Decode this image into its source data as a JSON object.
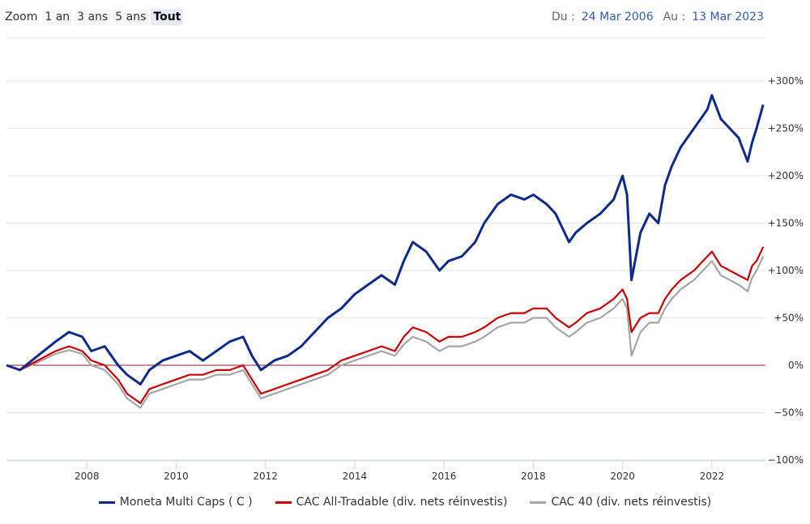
{
  "range_selector": {
    "zoom_label": "Zoom",
    "buttons": [
      "1 an",
      "3 ans",
      "5 ans",
      "Tout"
    ],
    "active": "Tout"
  },
  "date_range": {
    "from_label": "Du :",
    "from_value": "24 Mar 2006",
    "to_label": "Au :",
    "to_value": "13 Mar 2023"
  },
  "colors": {
    "moneta": "#0d2b8c",
    "cac_all": "#cc0000",
    "cac40": "#a6a6a6",
    "zero_line": "#8b1a3a",
    "grid": "#e6e6e6"
  },
  "chart_data": {
    "type": "line",
    "x_range": [
      2006.2,
      2023.2
    ],
    "ylim": [
      -100,
      300
    ],
    "x_ticks": [
      "2008",
      "2010",
      "2012",
      "2014",
      "2016",
      "2018",
      "2020",
      "2022"
    ],
    "y_ticks": [
      "+300%",
      "+250%",
      "+200%",
      "+150%",
      "+100%",
      "+50%",
      "0%",
      "−50%",
      "−100%"
    ],
    "legend_position": "bottom",
    "series": [
      {
        "name": "Moneta Multi Caps ( C )",
        "color": "#0d2b8c",
        "x": [
          2006.2,
          2006.5,
          2006.9,
          2007.3,
          2007.6,
          2007.9,
          2008.1,
          2008.4,
          2008.7,
          2008.9,
          2009.2,
          2009.4,
          2009.7,
          2010.0,
          2010.3,
          2010.6,
          2010.9,
          2011.2,
          2011.5,
          2011.7,
          2011.9,
          2012.2,
          2012.5,
          2012.8,
          2013.1,
          2013.4,
          2013.7,
          2014.0,
          2014.3,
          2014.6,
          2014.9,
          2015.1,
          2015.3,
          2015.6,
          2015.9,
          2016.1,
          2016.4,
          2016.7,
          2016.9,
          2017.2,
          2017.5,
          2017.8,
          2018.0,
          2018.3,
          2018.5,
          2018.8,
          2018.95,
          2019.2,
          2019.5,
          2019.8,
          2020.0,
          2020.1,
          2020.2,
          2020.4,
          2020.6,
          2020.8,
          2020.95,
          2021.1,
          2021.3,
          2021.6,
          2021.9,
          2022.0,
          2022.2,
          2022.4,
          2022.6,
          2022.8,
          2022.9,
          2023.0,
          2023.15
        ],
        "y": [
          0,
          -5,
          10,
          25,
          35,
          30,
          15,
          20,
          0,
          -10,
          -20,
          -5,
          5,
          10,
          15,
          5,
          15,
          25,
          30,
          10,
          -5,
          5,
          10,
          20,
          35,
          50,
          60,
          75,
          85,
          95,
          85,
          110,
          130,
          120,
          100,
          110,
          115,
          130,
          150,
          170,
          180,
          175,
          180,
          170,
          160,
          130,
          140,
          150,
          160,
          175,
          200,
          180,
          90,
          140,
          160,
          150,
          190,
          210,
          230,
          250,
          270,
          285,
          260,
          250,
          240,
          215,
          235,
          250,
          275
        ]
      },
      {
        "name": "CAC All-Tradable (div. nets réinvestis)",
        "color": "#cc0000",
        "x": [
          2006.2,
          2006.5,
          2006.9,
          2007.3,
          2007.6,
          2007.9,
          2008.1,
          2008.4,
          2008.7,
          2008.9,
          2009.2,
          2009.4,
          2009.7,
          2010.0,
          2010.3,
          2010.6,
          2010.9,
          2011.2,
          2011.5,
          2011.7,
          2011.9,
          2012.2,
          2012.5,
          2012.8,
          2013.1,
          2013.4,
          2013.7,
          2014.0,
          2014.3,
          2014.6,
          2014.9,
          2015.1,
          2015.3,
          2015.6,
          2015.9,
          2016.1,
          2016.4,
          2016.7,
          2016.9,
          2017.2,
          2017.5,
          2017.8,
          2018.0,
          2018.3,
          2018.5,
          2018.8,
          2018.95,
          2019.2,
          2019.5,
          2019.8,
          2020.0,
          2020.1,
          2020.2,
          2020.4,
          2020.6,
          2020.8,
          2020.95,
          2021.1,
          2021.3,
          2021.6,
          2021.9,
          2022.0,
          2022.2,
          2022.4,
          2022.6,
          2022.8,
          2022.9,
          2023.0,
          2023.15
        ],
        "y": [
          0,
          -5,
          5,
          15,
          20,
          15,
          5,
          0,
          -15,
          -30,
          -40,
          -25,
          -20,
          -15,
          -10,
          -10,
          -5,
          -5,
          0,
          -15,
          -30,
          -25,
          -20,
          -15,
          -10,
          -5,
          5,
          10,
          15,
          20,
          15,
          30,
          40,
          35,
          25,
          30,
          30,
          35,
          40,
          50,
          55,
          55,
          60,
          60,
          50,
          40,
          45,
          55,
          60,
          70,
          80,
          70,
          35,
          50,
          55,
          55,
          70,
          80,
          90,
          100,
          115,
          120,
          105,
          100,
          95,
          90,
          105,
          110,
          125
        ]
      },
      {
        "name": "CAC 40 (div. nets réinvestis)",
        "color": "#a6a6a6",
        "x": [
          2006.2,
          2006.5,
          2006.9,
          2007.3,
          2007.6,
          2007.9,
          2008.1,
          2008.4,
          2008.7,
          2008.9,
          2009.2,
          2009.4,
          2009.7,
          2010.0,
          2010.3,
          2010.6,
          2010.9,
          2011.2,
          2011.5,
          2011.7,
          2011.9,
          2012.2,
          2012.5,
          2012.8,
          2013.1,
          2013.4,
          2013.7,
          2014.0,
          2014.3,
          2014.6,
          2014.9,
          2015.1,
          2015.3,
          2015.6,
          2015.9,
          2016.1,
          2016.4,
          2016.7,
          2016.9,
          2017.2,
          2017.5,
          2017.8,
          2018.0,
          2018.3,
          2018.5,
          2018.8,
          2018.95,
          2019.2,
          2019.5,
          2019.8,
          2020.0,
          2020.1,
          2020.2,
          2020.4,
          2020.6,
          2020.8,
          2020.95,
          2021.1,
          2021.3,
          2021.6,
          2021.9,
          2022.0,
          2022.2,
          2022.4,
          2022.6,
          2022.8,
          2022.9,
          2023.0,
          2023.15
        ],
        "y": [
          0,
          -5,
          3,
          12,
          16,
          12,
          0,
          -5,
          -20,
          -35,
          -45,
          -30,
          -25,
          -20,
          -15,
          -15,
          -10,
          -10,
          -5,
          -20,
          -35,
          -30,
          -25,
          -20,
          -15,
          -10,
          0,
          5,
          10,
          15,
          10,
          22,
          30,
          25,
          15,
          20,
          20,
          25,
          30,
          40,
          45,
          45,
          50,
          50,
          40,
          30,
          35,
          45,
          50,
          60,
          70,
          60,
          10,
          35,
          45,
          45,
          60,
          70,
          80,
          90,
          105,
          110,
          95,
          90,
          85,
          78,
          92,
          100,
          115
        ]
      }
    ]
  }
}
